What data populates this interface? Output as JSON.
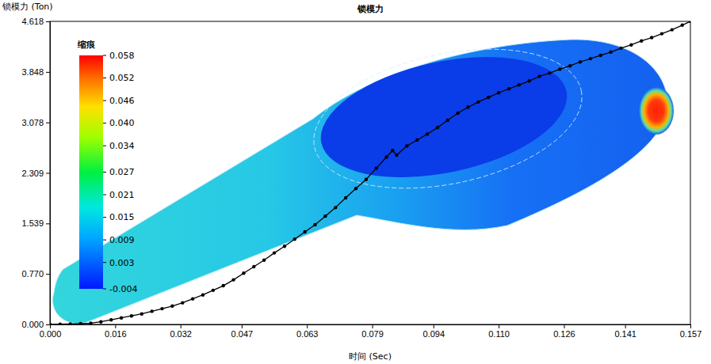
{
  "chart_data": {
    "type": "line",
    "title": "锁模力",
    "y_label": "锁模力 (Ton)",
    "x_label": "时间 (Sec)",
    "color": "#000000",
    "marker": "circle",
    "xlim": [
      0,
      0.157
    ],
    "xticks": [
      {
        "value": 0,
        "label": "0.000"
      },
      0.016,
      0.032,
      0.047,
      0.063,
      0.079,
      0.094,
      {
        "value": 0.11,
        "label": "0.110"
      },
      0.126,
      0.141,
      0.157
    ],
    "ylim": [
      0,
      4.618
    ],
    "yticks": [
      {
        "value": 0,
        "label": "0.000"
      },
      {
        "value": 0.77,
        "label": "0.770"
      },
      1.539,
      2.309,
      3.078,
      3.848,
      4.618
    ],
    "x": [
      0,
      0.0025,
      0.005,
      0.0075,
      0.01,
      0.0125,
      0.015,
      0.0175,
      0.02,
      0.0225,
      0.025,
      0.0275,
      0.03,
      0.0325,
      0.035,
      0.0375,
      0.04,
      0.0425,
      0.045,
      0.0475,
      0.05,
      0.0525,
      0.055,
      0.0575,
      0.06,
      0.0625,
      0.065,
      0.0675,
      0.07,
      0.0725,
      0.075,
      0.0775,
      0.08,
      0.0825,
      0.084,
      0.085,
      0.0875,
      0.09,
      0.0925,
      0.095,
      0.0975,
      0.1,
      0.1025,
      0.105,
      0.1075,
      0.11,
      0.1125,
      0.115,
      0.1175,
      0.12,
      0.1225,
      0.125,
      0.1275,
      0.13,
      0.1325,
      0.135,
      0.1375,
      0.14,
      0.1425,
      0.145,
      0.1475,
      0.15,
      0.1525,
      0.155,
      0.157
    ],
    "values": [
      0,
      0.003,
      0.006,
      0.012,
      0.02,
      0.04,
      0.07,
      0.1,
      0.13,
      0.16,
      0.2,
      0.24,
      0.28,
      0.33,
      0.39,
      0.45,
      0.52,
      0.59,
      0.68,
      0.78,
      0.88,
      0.98,
      1.09,
      1.19,
      1.3,
      1.41,
      1.52,
      1.65,
      1.78,
      1.93,
      2.07,
      2.21,
      2.38,
      2.55,
      2.65,
      2.58,
      2.72,
      2.81,
      2.9,
      3.0,
      3.11,
      3.22,
      3.31,
      3.39,
      3.46,
      3.53,
      3.59,
      3.65,
      3.71,
      3.78,
      3.83,
      3.89,
      3.94,
      4.0,
      4.05,
      4.1,
      4.15,
      4.21,
      4.26,
      4.32,
      4.37,
      4.43,
      4.49,
      4.56,
      4.618
    ],
    "colorbar": {
      "title": "缩痕",
      "range": [
        -0.004,
        0.058
      ],
      "ticks": [
        0.058,
        0.052,
        0.046,
        {
          "value": 0.04,
          "label": "0.040"
        },
        0.034,
        0.027,
        0.021,
        0.015,
        0.009,
        0.003,
        -0.004
      ]
    }
  }
}
